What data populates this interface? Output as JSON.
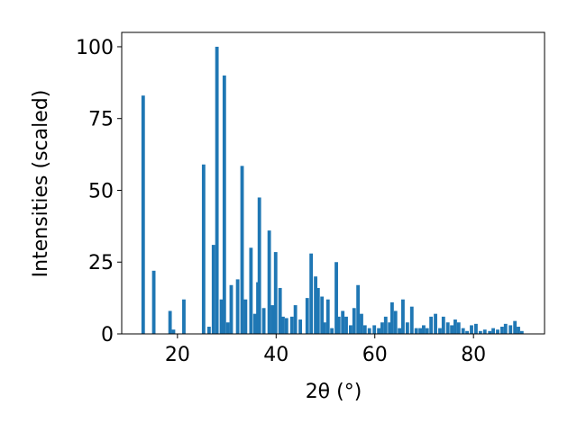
{
  "chart_data": {
    "type": "bar",
    "x_label": "2θ (°)",
    "y_label": "Intensities (scaled)",
    "color": "#1f77b4",
    "x": [
      13.05,
      15.2,
      18.5,
      19.2,
      21.3,
      25.3,
      26.4,
      27.3,
      28.0,
      28.9,
      29.5,
      30.2,
      30.9,
      32.2,
      33.1,
      33.8,
      34.9,
      35.7,
      36.3,
      36.6,
      37.5,
      38.6,
      39.3,
      39.9,
      40.8,
      41.4,
      42.1,
      43.2,
      43.9,
      44.9,
      46.3,
      47.1,
      48.0,
      48.5,
      49.3,
      49.8,
      50.5,
      51.3,
      52.2,
      52.7,
      53.5,
      54.2,
      55.1,
      55.8,
      56.6,
      57.3,
      58.0,
      58.9,
      59.9,
      60.8,
      61.5,
      62.2,
      63.0,
      63.5,
      64.2,
      65.0,
      65.7,
      66.6,
      67.5,
      68.4,
      69.2,
      69.9,
      70.6,
      71.4,
      72.3,
      73.2,
      73.9,
      74.8,
      75.6,
      76.3,
      77.0,
      77.9,
      78.7,
      79.6,
      80.5,
      81.4,
      82.3,
      83.3,
      84.0,
      84.9,
      85.8,
      86.5,
      87.5,
      88.4,
      89.1,
      89.8
    ],
    "values": [
      83,
      22,
      8,
      1.5,
      12,
      59,
      2.5,
      31,
      100,
      12,
      90,
      4,
      17,
      19,
      58.5,
      12,
      30,
      7,
      18,
      47.5,
      9,
      36,
      10,
      28.5,
      16,
      6,
      5.5,
      6,
      10,
      5,
      12.5,
      28,
      20,
      16,
      13,
      4,
      12,
      2,
      25,
      6,
      8,
      6,
      3,
      9,
      17,
      7,
      3,
      2,
      3,
      2,
      4,
      6,
      4,
      11,
      8,
      2,
      12,
      4,
      9.5,
      2,
      2,
      3,
      2,
      6,
      7,
      2,
      6,
      4,
      3,
      5,
      4,
      2,
      1,
      3,
      3.5,
      1,
      1.5,
      1,
      2,
      1.5,
      2.5,
      3.5,
      3,
      4.5,
      2.5,
      1
    ],
    "xlim": [
      8.7,
      94.4
    ],
    "ylim": [
      0,
      105
    ],
    "xticks": [
      20,
      40,
      60,
      80
    ],
    "yticks": [
      0,
      25,
      50,
      75,
      100
    ],
    "grid": false
  }
}
